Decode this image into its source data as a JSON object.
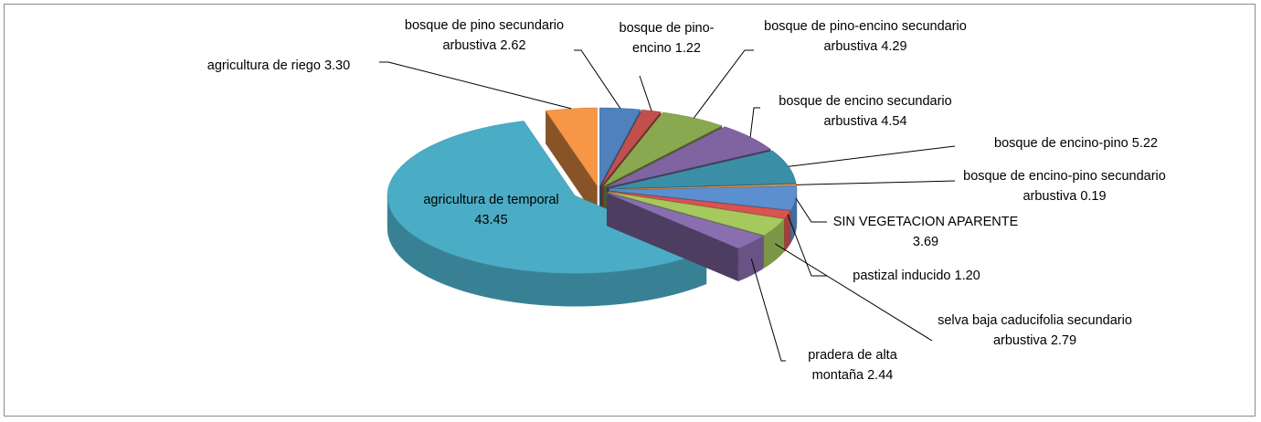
{
  "chart_data": {
    "type": "pie",
    "categories": [
      "bosque de pino secundario arbustiva",
      "bosque de pino-encino",
      "bosque de pino-encino secundario arbustiva",
      "bosque de encino secundario arbustiva",
      "bosque de encino-pino",
      "bosque de encino-pino secundario arbustiva",
      "SIN VEGETACION APARENTE",
      "pastizal inducido",
      "selva baja caducifolia secundario arbustiva",
      "pradera de alta montaña",
      "agricultura de temporal",
      "agricultura de riego"
    ],
    "values": [
      2.62,
      1.22,
      4.29,
      4.54,
      5.22,
      0.19,
      3.69,
      1.2,
      2.79,
      2.44,
      43.45,
      3.3
    ],
    "value_labels": [
      "2.62",
      "1.22",
      "4.29",
      "4.54",
      "5.22",
      "0.19",
      "3.69",
      "1.20",
      "2.79",
      "2.44",
      "43.45",
      "3.30"
    ],
    "colors": [
      "#4f81bd",
      "#c0504d",
      "#8aa84f",
      "#8064a2",
      "#3a8fa6",
      "#f79646",
      "#5b8fd0",
      "#d9534f",
      "#a5c85f",
      "#8a6fb0",
      "#4bacc6",
      "#f79646"
    ]
  }
}
